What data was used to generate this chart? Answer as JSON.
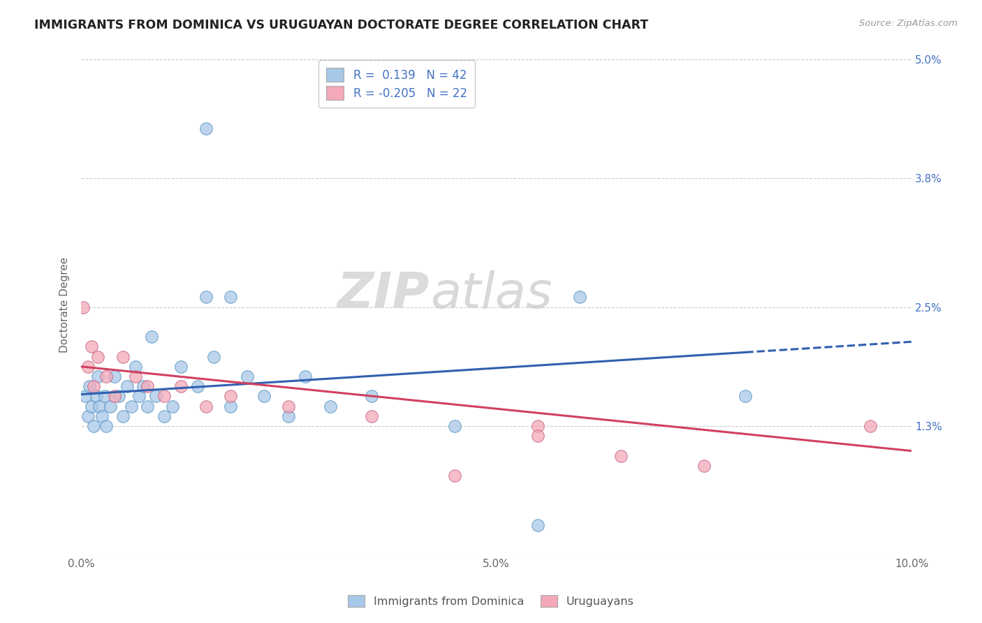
{
  "title": "IMMIGRANTS FROM DOMINICA VS URUGUAYAN DOCTORATE DEGREE CORRELATION CHART",
  "source_text": "Source: ZipAtlas.com",
  "ylabel": "Doctorate Degree",
  "xmin": 0.0,
  "xmax": 10.0,
  "ymin": 0.0,
  "ymax": 5.0,
  "ytick_vals": [
    0.0,
    1.3,
    2.5,
    3.8,
    5.0
  ],
  "ytick_labels_right": [
    "",
    "1.3%",
    "2.5%",
    "3.8%",
    "5.0%"
  ],
  "xtick_pos": [
    0,
    1,
    2,
    3,
    4,
    5,
    6,
    7,
    8,
    9,
    10
  ],
  "xtick_labels": [
    "0.0%",
    "",
    "",
    "",
    "",
    "5.0%",
    "",
    "",
    "",
    "",
    "10.0%"
  ],
  "R_blue": 0.139,
  "N_blue": 42,
  "R_pink": -0.205,
  "N_pink": 22,
  "blue_color": "#a8c8e8",
  "pink_color": "#f4a8b8",
  "blue_line_color": "#3060b0",
  "pink_line_color": "#d04060",
  "legend_text_color": "#4472c4",
  "watermark": "ZIPatlas",
  "blue_line_x0": 0.0,
  "blue_line_y0": 1.62,
  "blue_line_x1": 10.0,
  "blue_line_y1": 2.15,
  "blue_dash_start": 8.0,
  "pink_line_x0": 0.0,
  "pink_line_y0": 1.9,
  "pink_line_x1": 10.0,
  "pink_line_y1": 1.05,
  "blue_scatter_x": [
    0.05,
    0.08,
    0.1,
    0.12,
    0.15,
    0.18,
    0.2,
    0.22,
    0.25,
    0.28,
    0.3,
    0.35,
    0.4,
    0.45,
    0.5,
    0.55,
    0.6,
    0.65,
    0.7,
    0.75,
    0.8,
    0.85,
    0.9,
    1.0,
    1.1,
    1.2,
    1.4,
    1.5,
    1.6,
    1.8,
    2.0,
    2.2,
    2.5,
    2.7,
    3.0,
    3.5,
    4.5,
    5.5,
    6.0,
    8.0,
    1.5,
    1.8
  ],
  "blue_scatter_y": [
    1.6,
    1.4,
    1.7,
    1.5,
    1.3,
    1.6,
    1.8,
    1.5,
    1.4,
    1.6,
    1.3,
    1.5,
    1.8,
    1.6,
    1.4,
    1.7,
    1.5,
    1.9,
    1.6,
    1.7,
    1.5,
    2.2,
    1.6,
    1.4,
    1.5,
    1.9,
    1.7,
    2.6,
    2.0,
    1.5,
    1.8,
    1.6,
    1.4,
    1.8,
    1.5,
    1.6,
    1.3,
    0.3,
    2.6,
    1.6,
    4.3,
    2.6
  ],
  "pink_scatter_x": [
    0.02,
    0.08,
    0.12,
    0.15,
    0.2,
    0.3,
    0.4,
    0.5,
    0.65,
    0.8,
    1.0,
    1.2,
    1.5,
    1.8,
    2.5,
    3.5,
    4.5,
    5.5,
    6.5,
    7.5,
    5.5,
    9.5
  ],
  "pink_scatter_y": [
    2.5,
    1.9,
    2.1,
    1.7,
    2.0,
    1.8,
    1.6,
    2.0,
    1.8,
    1.7,
    1.6,
    1.7,
    1.5,
    1.6,
    1.5,
    1.4,
    0.8,
    1.3,
    1.0,
    0.9,
    1.2,
    1.3
  ]
}
